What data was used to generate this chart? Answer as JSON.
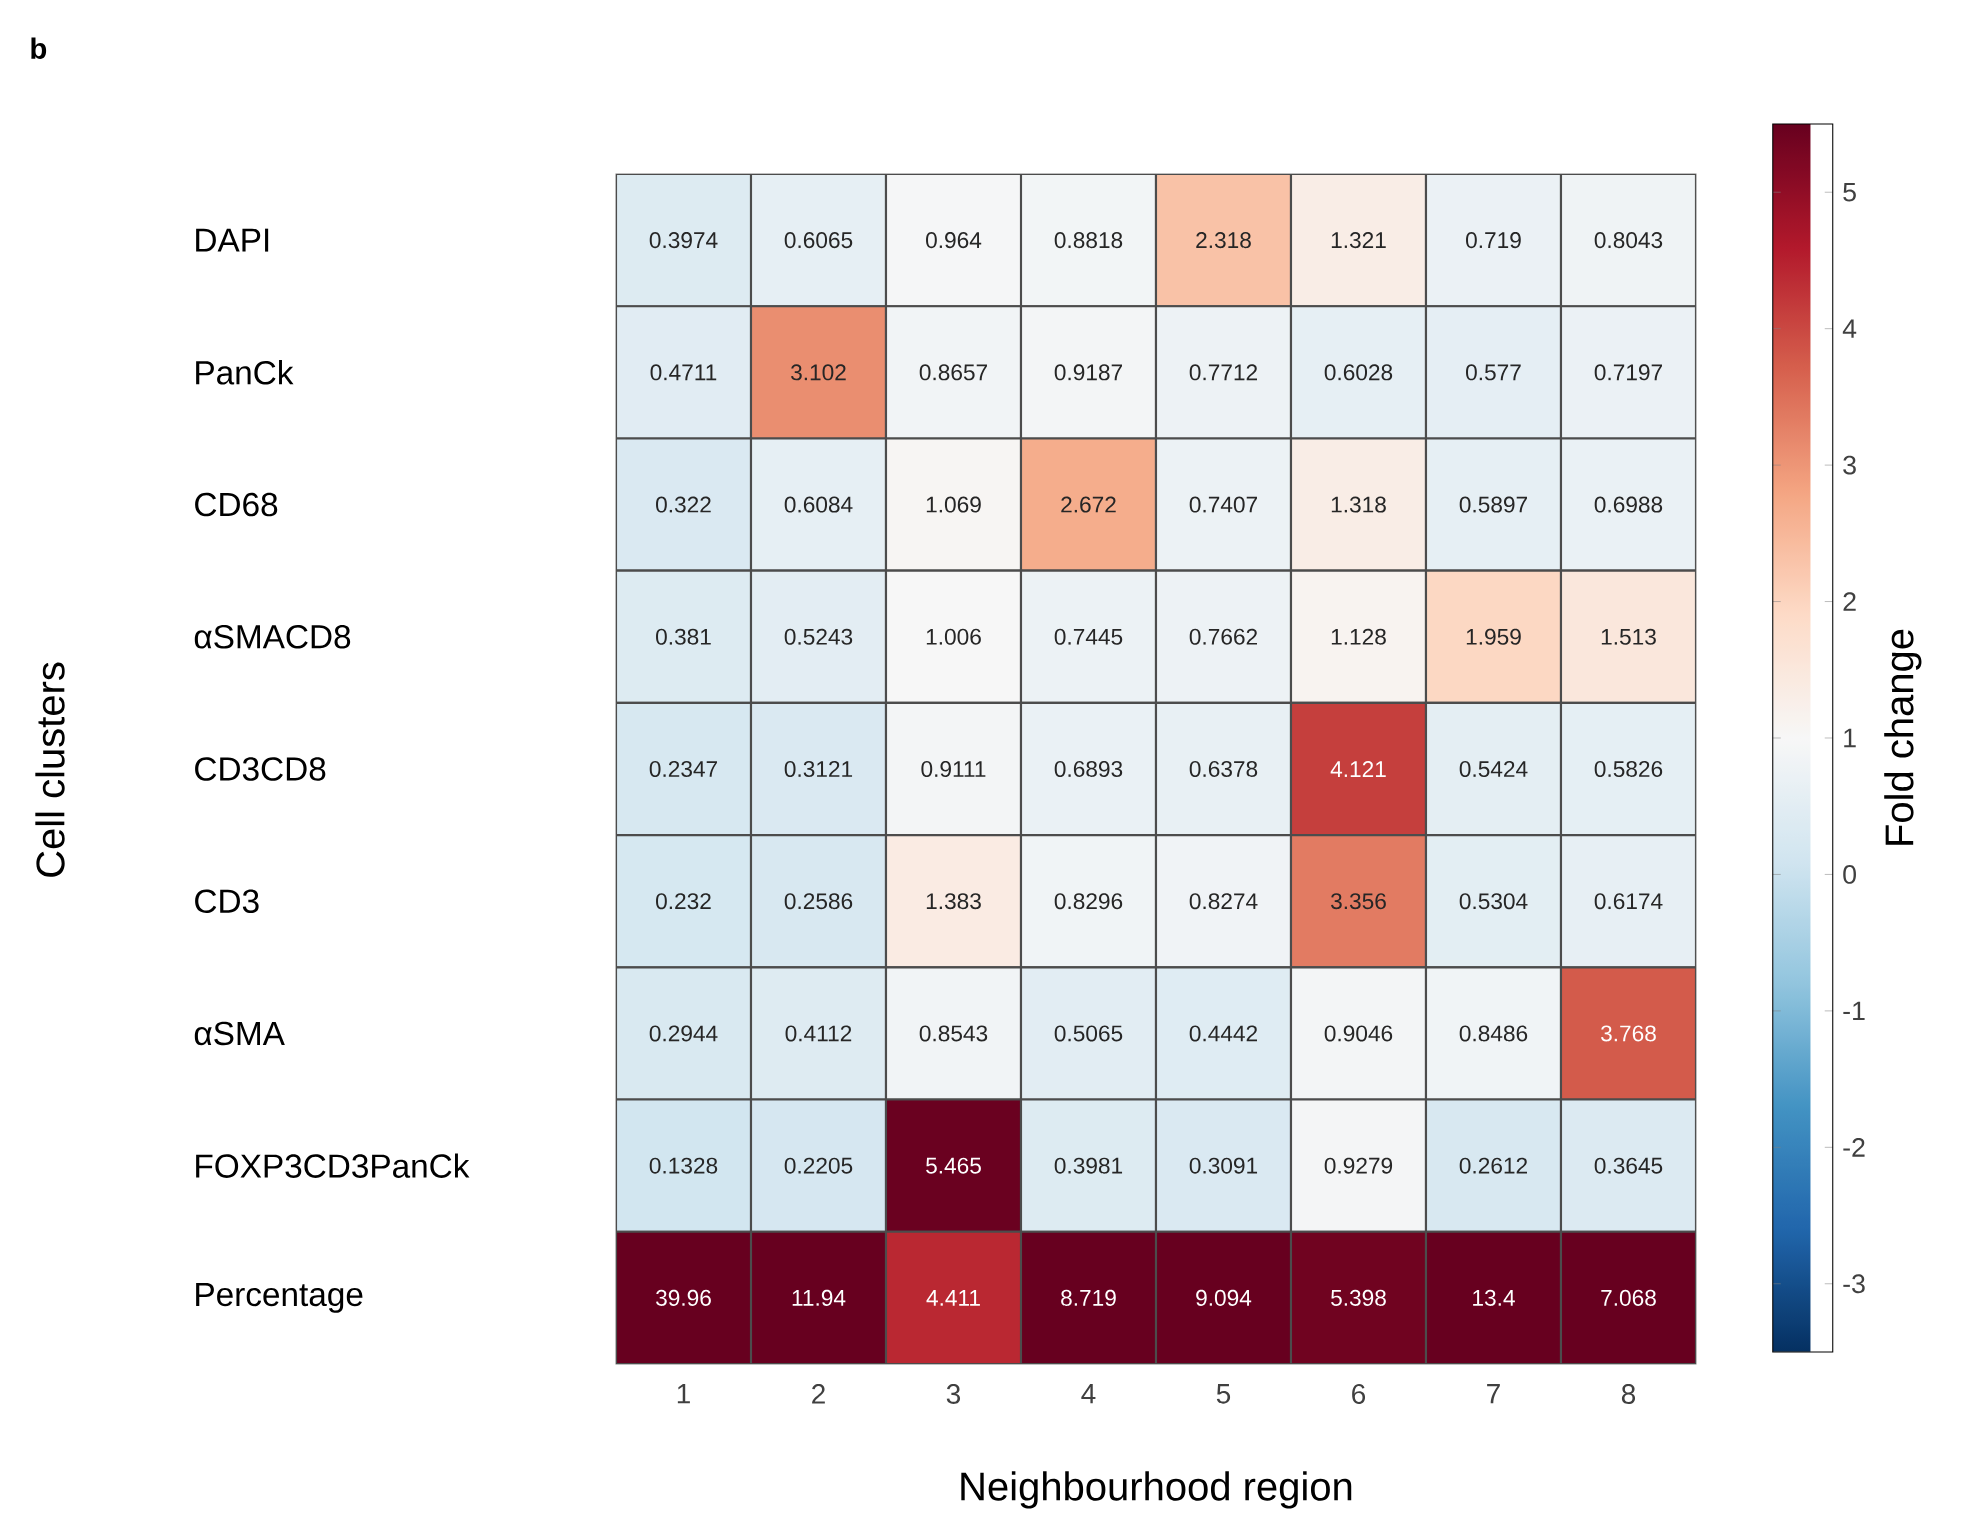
{
  "chart_data": {
    "type": "heatmap",
    "annotations": [
      "b"
    ],
    "xlabel": "Neighbourhood region",
    "ylabel": "Cell clusters",
    "clabel": "Fold change",
    "categories": [
      "1",
      "2",
      "3",
      "4",
      "5",
      "6",
      "7",
      "8"
    ],
    "y_categories": [
      "DAPI",
      "PanCk",
      "CD68",
      "αSMACD8",
      "CD3CD8",
      "CD3",
      "αSMA",
      "FOXP3CD3PanCk",
      "Percentage"
    ],
    "cells": [
      [
        0.3974,
        0.6065,
        0.964,
        0.8818,
        2.318,
        1.321,
        0.719,
        0.8043
      ],
      [
        0.4711,
        3.102,
        0.8657,
        0.9187,
        0.7712,
        0.6028,
        0.577,
        0.7197
      ],
      [
        0.322,
        0.6084,
        1.069,
        2.672,
        0.7407,
        1.318,
        0.5897,
        0.6988
      ],
      [
        0.381,
        0.5243,
        1.006,
        0.7445,
        0.7662,
        1.128,
        1.959,
        1.513
      ],
      [
        0.2347,
        0.3121,
        0.9111,
        0.6893,
        0.6378,
        4.121,
        0.5424,
        0.5826
      ],
      [
        0.232,
        0.2586,
        1.383,
        0.8296,
        0.8274,
        3.356,
        0.5304,
        0.6174
      ],
      [
        0.2944,
        0.4112,
        0.8543,
        0.5065,
        0.4442,
        0.9046,
        0.8486,
        3.768
      ],
      [
        0.1328,
        0.2205,
        5.465,
        0.3981,
        0.3091,
        0.9279,
        0.2612,
        0.3645
      ],
      [
        39.96,
        11.94,
        4.411,
        8.719,
        9.094,
        5.398,
        13.4,
        7.068
      ]
    ],
    "data_labels": true,
    "clim": [
      -3.5,
      5.5
    ],
    "cticks": [
      -3,
      -2,
      -1,
      0,
      1,
      2,
      3,
      4,
      5
    ]
  }
}
